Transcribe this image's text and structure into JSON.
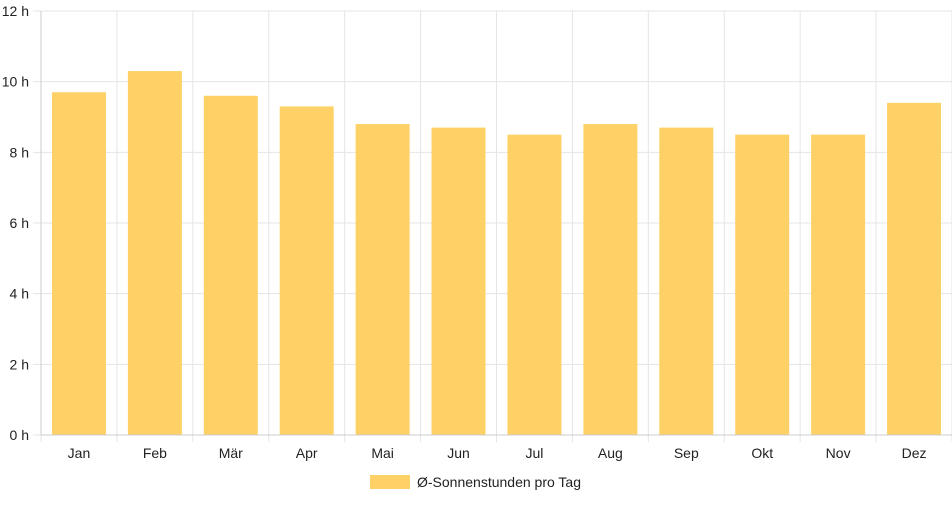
{
  "chart_data": {
    "type": "bar",
    "categories": [
      "Jan",
      "Feb",
      "Mär",
      "Apr",
      "Mai",
      "Jun",
      "Jul",
      "Aug",
      "Sep",
      "Okt",
      "Nov",
      "Dez"
    ],
    "series": [
      {
        "name": "Ø-Sonnenstunden pro Tag",
        "values": [
          9.7,
          10.3,
          9.6,
          9.3,
          8.8,
          8.7,
          8.5,
          8.8,
          8.7,
          8.5,
          8.5,
          9.4
        ],
        "color": "#fed166"
      }
    ],
    "y_ticks": [
      "0 h",
      "2 h",
      "4 h",
      "6 h",
      "8 h",
      "10 h",
      "12 h"
    ],
    "ylim": [
      0,
      12
    ],
    "grid": true,
    "legend": "bottom-center",
    "title": "",
    "xlabel": "",
    "ylabel": "",
    "colors": {
      "grid": "#e5e5e5",
      "axis": "#cccccc",
      "text": "#222222"
    }
  }
}
